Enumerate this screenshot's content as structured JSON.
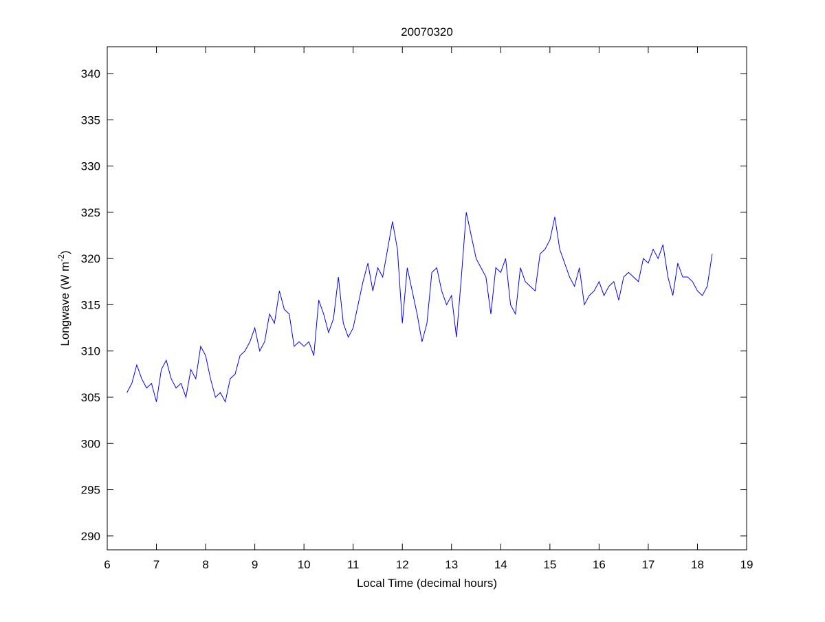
{
  "chart_data": {
    "type": "line",
    "title": "20070320",
    "xlabel": "Local Time (decimal hours)",
    "ylabel": [
      "Longwave (W m",
      "-2",
      ")"
    ],
    "x": [
      6.4,
      6.5,
      6.6,
      6.7,
      6.8,
      6.9,
      7.0,
      7.1,
      7.2,
      7.3,
      7.4,
      7.5,
      7.6,
      7.7,
      7.8,
      7.9,
      8.0,
      8.1,
      8.2,
      8.3,
      8.4,
      8.5,
      8.6,
      8.7,
      8.8,
      8.9,
      9.0,
      9.1,
      9.2,
      9.3,
      9.4,
      9.5,
      9.6,
      9.7,
      9.8,
      9.9,
      10.0,
      10.1,
      10.2,
      10.3,
      10.4,
      10.5,
      10.6,
      10.7,
      10.8,
      10.9,
      11.0,
      11.1,
      11.2,
      11.3,
      11.4,
      11.5,
      11.6,
      11.7,
      11.8,
      11.9,
      12.0,
      12.1,
      12.2,
      12.3,
      12.4,
      12.5,
      12.6,
      12.7,
      12.8,
      12.9,
      13.0,
      13.1,
      13.2,
      13.3,
      13.4,
      13.5,
      13.6,
      13.7,
      13.8,
      13.9,
      14.0,
      14.1,
      14.2,
      14.3,
      14.4,
      14.5,
      14.6,
      14.7,
      14.8,
      14.9,
      15.0,
      15.1,
      15.2,
      15.3,
      15.4,
      15.5,
      15.6,
      15.7,
      15.8,
      15.9,
      16.0,
      16.1,
      16.2,
      16.3,
      16.4,
      16.5,
      16.6,
      16.7,
      16.8,
      16.9,
      17.0,
      17.1,
      17.2,
      17.3,
      17.4,
      17.5,
      17.6,
      17.7,
      17.8,
      17.9,
      18.0,
      18.1,
      18.2,
      18.3
    ],
    "series": [
      {
        "color": "#0000ff",
        "values": [
          305.5,
          306.5,
          308.5,
          307,
          306,
          306.5,
          304.5,
          308,
          309,
          307,
          306,
          306.5,
          305,
          308,
          307,
          310.5,
          309.5,
          307,
          305,
          305.5,
          304.5,
          307,
          307.5,
          309.5,
          310,
          311,
          312.5,
          310,
          311,
          314,
          313,
          316.5,
          314.5,
          314,
          310.5,
          311,
          310.5,
          311,
          309.5,
          315.5,
          314,
          312,
          313.5,
          318,
          313,
          311.5,
          312.5,
          315,
          317.5,
          319.5,
          316.5,
          319,
          318,
          321,
          324,
          321,
          313,
          319,
          316.5,
          314,
          311,
          313,
          318.5,
          319,
          316.5,
          315,
          316,
          311.5,
          318,
          325,
          322.5,
          320,
          319,
          318,
          314,
          319,
          318.5,
          320,
          315,
          314,
          319,
          317.5,
          317,
          316.5,
          320.5,
          321,
          322,
          324.5,
          321,
          319.5,
          318,
          317,
          319,
          315,
          316,
          316.5,
          317.5,
          316,
          317,
          317.5,
          315.5,
          318,
          318.5,
          318,
          317.5,
          320,
          319.5,
          321,
          320,
          321.5,
          318,
          316,
          319.5,
          318,
          318,
          317.5,
          316.5,
          316,
          317,
          320.5
        ]
      }
    ],
    "xlim": [
      6,
      19
    ],
    "xticks": [
      6,
      7,
      8,
      9,
      10,
      11,
      12,
      13,
      14,
      15,
      16,
      17,
      18,
      19
    ],
    "ylim": [
      288.5,
      342.9
    ],
    "yticks": [
      290,
      295,
      300,
      305,
      310,
      315,
      320,
      325,
      330,
      335,
      340
    ]
  }
}
